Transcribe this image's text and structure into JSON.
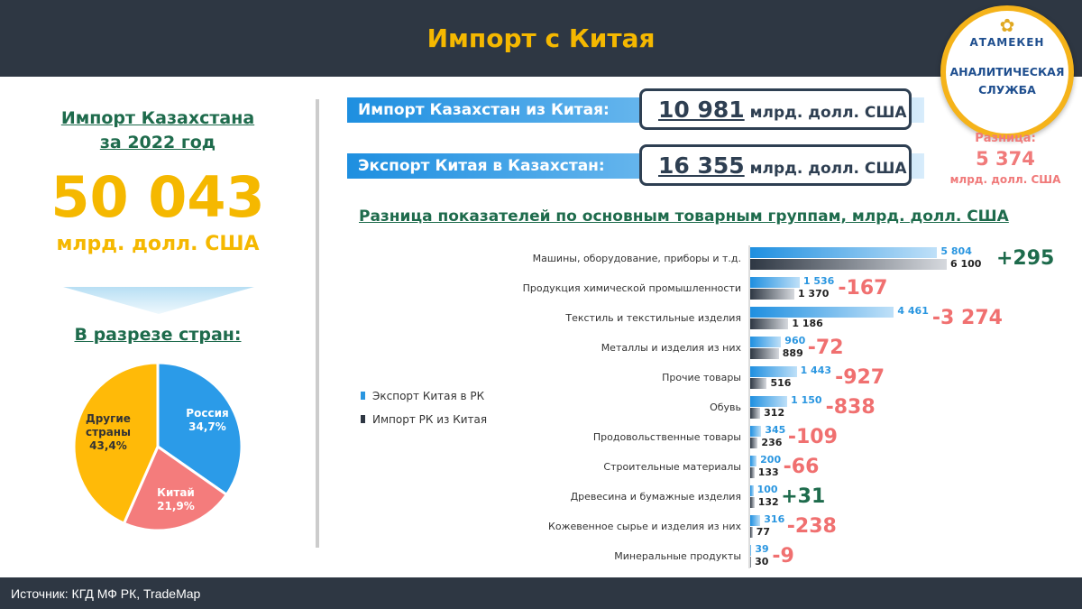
{
  "header": {
    "title": "Импорт с Китая"
  },
  "logo": {
    "brand": "АТАМЕКЕН",
    "service_line1": "АНАЛИТИЧЕСКАЯ",
    "service_line2": "СЛУЖБА"
  },
  "difference": {
    "label": "Разница:",
    "value": "5 374",
    "unit": "млрд. долл. США"
  },
  "left": {
    "title": "Импорт Казахстана за 2022 год",
    "total": "50 043",
    "unit": "млрд. долл. США",
    "countries_title": "В разрезе стран:"
  },
  "pie": [
    {
      "name": "Россия",
      "pct": "34,7%",
      "value": 34.7,
      "color": "#2b9be8"
    },
    {
      "name": "Китай",
      "pct": "21,9%",
      "value": 21.9,
      "color": "#f47c7c"
    },
    {
      "name": "Другие страны",
      "pct": "43,4%",
      "value": 43.4,
      "color": "#ffba08"
    }
  ],
  "kpi": [
    {
      "label": "Импорт Казахстан из Китая:",
      "value": "10 981",
      "unit": "млрд. долл. США"
    },
    {
      "label": "Экспорт Китая в Казахстан:",
      "value": "16 355",
      "unit": "млрд. долл. США"
    }
  ],
  "chart_data": {
    "type": "bar",
    "title": "Разница показателей по основным товарным группам, млрд. долл. США",
    "legend": [
      "Экспорт Китая в РК",
      "Импорт РК из Китая"
    ],
    "categories": [
      "Машины, оборудование, приборы и т.д.",
      "Продукция химической промышленности",
      "Текстиль и текстильные изделия",
      "Металлы и изделия из них",
      "Прочие товары",
      "Обувь",
      "Продовольственные товары",
      "Строительные материалы",
      "Древесина и бумажные изделия",
      "Кожевенное сырье и изделия из них",
      "Минеральные продукты"
    ],
    "series": [
      {
        "name": "Экспорт Китая в РК",
        "values": [
          5804,
          1536,
          4461,
          960,
          1443,
          1150,
          345,
          200,
          100,
          316,
          39
        ],
        "labels": [
          "5 804",
          "1 536",
          "4 461",
          "960",
          "1 443",
          "1 150",
          "345",
          "200",
          "100",
          "316",
          "39"
        ]
      },
      {
        "name": "Импорт РК из Китая",
        "values": [
          6100,
          1370,
          1186,
          889,
          516,
          312,
          236,
          133,
          132,
          77,
          30
        ],
        "labels": [
          "6 100",
          "1 370",
          "1 186",
          "889",
          "516",
          "312",
          "236",
          "133",
          "132",
          "77",
          "30"
        ]
      }
    ],
    "differences": [
      "+295",
      "-167",
      "-3 274",
      "-72",
      "-927",
      "-838",
      "-109",
      "-66",
      "+31",
      "-238",
      "-9"
    ]
  },
  "colors": {
    "positive": "#1e6b4c",
    "negative": "#f07070"
  },
  "footer": {
    "source": "Источник: КГД МФ РК, TradeMap"
  }
}
